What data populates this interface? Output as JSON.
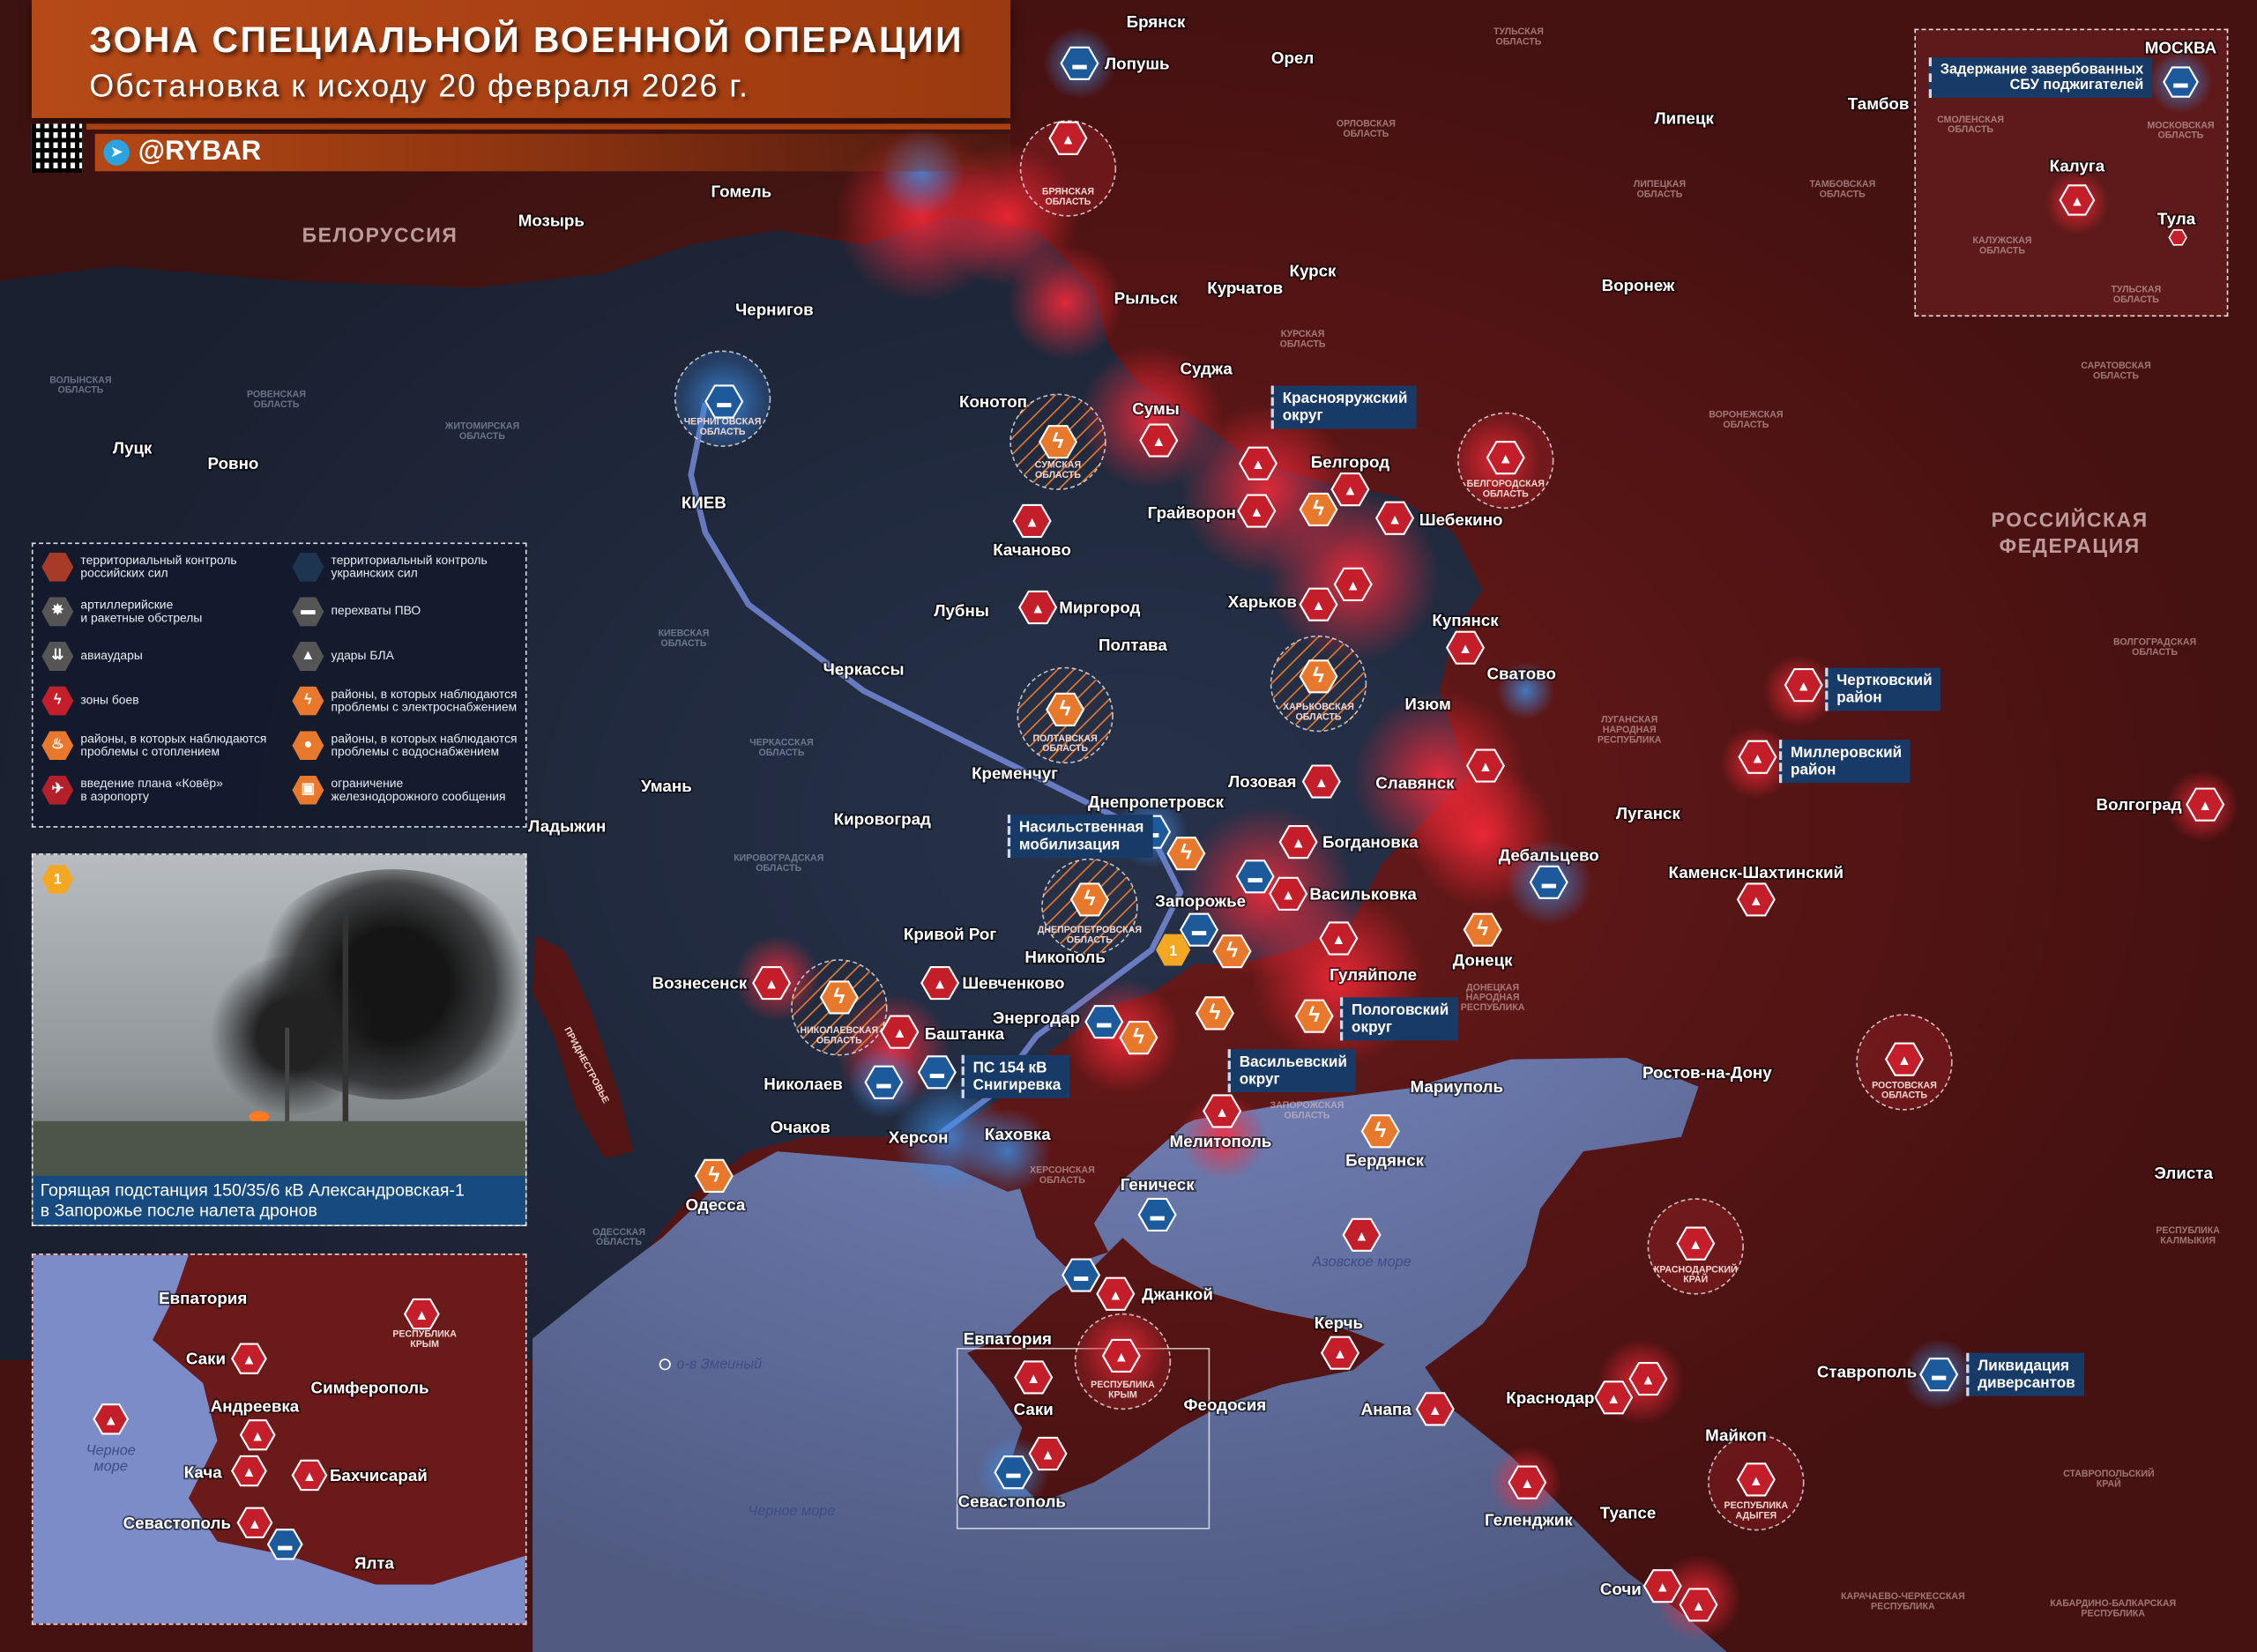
{
  "header": {
    "title": "ЗОНА СПЕЦИАЛЬНОЙ ВОЕННОЙ ОПЕРАЦИИ",
    "subtitle": "Обстановка к исходу 20 февраля 2026 г.",
    "channel": "@RYBAR"
  },
  "colors": {
    "russian_control": "#6b1a1a",
    "ukrainian_control": "#27324a",
    "sea": "#7c8cc8",
    "combat": "#c41e2a",
    "power_problems": "#e8792c",
    "pvo": "#1d5a9c",
    "header": "#b54a18",
    "callout": "#183a66"
  },
  "legend": {
    "items": [
      {
        "label": "территориальный контроль\nроссийских сил",
        "icon": "russian-control-hex"
      },
      {
        "label": "территориальный контроль\nукраинских сил",
        "icon": "ukrainian-control-hex"
      },
      {
        "label": "артиллерийские\nи ракетные обстрелы",
        "icon": "explosion-icon"
      },
      {
        "label": "перехваты ПВО",
        "icon": "air-defense-launcher-icon"
      },
      {
        "label": "авиаудары",
        "icon": "bombs-icon"
      },
      {
        "label": "удары БЛА",
        "icon": "drone-icon"
      },
      {
        "label": "зоны боев",
        "icon": "lightning-red-icon"
      },
      {
        "label": "районы, в которых наблюдаются\nпроблемы с электроснабжением",
        "icon": "lightning-orange-icon"
      },
      {
        "label": "районы, в которых наблюдаются\nпроблемы с отоплением",
        "icon": "flame-icon"
      },
      {
        "label": "районы, в которых наблюдаются\nпроблемы с водоснабжением",
        "icon": "water-drop-icon"
      },
      {
        "label": "введение плана «Ковёр»\nв аэропорту",
        "icon": "airplane-closed-icon"
      },
      {
        "label": "ограничение\nжелезнодорожного сообщения",
        "icon": "train-closed-icon"
      }
    ]
  },
  "photo": {
    "badge": "1",
    "caption": "Горящая подстанция 150/35/6 кВ Александровская-1\nв Запорожье после налета дронов"
  },
  "map": {
    "countries": [
      "БЕЛОРУССИЯ",
      "РОССИЙСКАЯ",
      "ФЕДЕРАЦИЯ"
    ],
    "cities": [
      "Брянск",
      "Лопушь",
      "Орел",
      "Гомель",
      "Мозырь",
      "Чернигов",
      "Рыльск",
      "Курчатов",
      "Курск",
      "Воронеж",
      "Липецк",
      "Тамбов",
      "Суджа",
      "Конотоп",
      "Сумы",
      "Белгород",
      "Грайворон",
      "Шебекино",
      "Луцк",
      "Ровно",
      "КИЕВ",
      "Качановo",
      "Лубны",
      "Миргород",
      "Харьков",
      "Купянск",
      "Полтава",
      "Сватово",
      "Черкассы",
      "Изюм",
      "Кременчуг",
      "Лозовая",
      "Славянск",
      "Днепропетровск",
      "Умань",
      "Ладыжин",
      "Кировоград",
      "Богдановка",
      "Дебальцево",
      "Васильковка",
      "Запорожье",
      "Кривой Рог",
      "Никополь",
      "Гуляйполе",
      "Донецк",
      "Шевченково",
      "Вознесенск",
      "Энергодар",
      "Баштанка",
      "Николаев",
      "Мариуполь",
      "Очаков",
      "Херсон",
      "Каховка",
      "Мелитополь",
      "Бердянск",
      "Одесса",
      "Геническ",
      "Джанкой",
      "Евпатория",
      "Керчь",
      "Саки",
      "Феодосия",
      "Анапа",
      "Краснодар",
      "Севастополь",
      "Геленджик",
      "Туапсе",
      "Сочи",
      "Ставрополь",
      "Майкоп",
      "Ростов-на-Дону",
      "Каменск-Шахтинский",
      "Луганск",
      "Волгоград",
      "Элиста"
    ],
    "regions": [
      "ТУЛЬСКАЯ\nОБЛАСТЬ",
      "ОРЛОВСКАЯ\nОБЛАСТЬ",
      "ЛИПЕЦКАЯ\nОБЛАСТЬ",
      "ТАМБОВСКАЯ\nОБЛАСТЬ",
      "КУРСКАЯ\nОБЛАСТЬ",
      "ВОРОНЕЖСКАЯ\nОБЛАСТЬ",
      "САРАТОВСКАЯ\nОБЛАСТЬ",
      "ВОЛГОГРАДСКАЯ\nОБЛАСТЬ",
      "ЛУГАНСКАЯ\nНАРОДНАЯ\nРЕСПУБЛИКА",
      "ДОНЕЦКАЯ\nНАРОДНАЯ\nРЕСПУБЛИКА",
      "ЗАПОРОЖСКАЯ\nОБЛАСТЬ",
      "ХЕРСОНСКАЯ\nОБЛАСТЬ",
      "РЕСПУБЛИКА\nКАЛМЫКИЯ",
      "СТАВРОПОЛЬСКИЙ\nКРАЙ",
      "КАРАЧАЕВО-ЧЕРКЕССКАЯ\nРЕСПУБЛИКА",
      "КАБАРДИНО-БАЛКАРСКАЯ\nРЕСПУБЛИКА",
      "ВОЛЫНСКАЯ\nОБЛАСТЬ",
      "РОВЕНСКАЯ\nОБЛАСТЬ",
      "ЖИТОМИРСКАЯ\nОБЛАСТЬ",
      "КИЕВСКАЯ\nОБЛАСТЬ",
      "ЧЕРКАССКАЯ\nОБЛАСТЬ",
      "КИРОВОГРАДСКАЯ\nОБЛАСТЬ",
      "ОДЕССКАЯ\nОБЛАСТЬ",
      "ПРИДНЕСТРОВЬЕ"
    ],
    "highlighted_regions": [
      "БРЯНСКАЯ\nОБЛАСТЬ",
      "ЧЕРНИГОВСКАЯ\nОБЛАСТЬ",
      "СУМСКАЯ\nОБЛАСТЬ",
      "БЕЛГОРОДСКАЯ\nОБЛАСТЬ",
      "ХАРЬКОВСКАЯ\nОБЛАСТЬ",
      "ПОЛТАВСКАЯ\nОБЛАСТЬ",
      "ДНЕПРОПЕТРОВСКАЯ\nОБЛАСТЬ",
      "НИКОЛАЕВСКАЯ\nОБЛАСТЬ",
      "РОСТОВСКАЯ\nОБЛАСТЬ",
      "КРАСНОДАРСКИЙ\nКРАЙ",
      "РЕСПУБЛИКА\nКРЫМ",
      "РЕСПУБЛИКА\nАДЫГЕЯ"
    ],
    "callouts": [
      "Краснояружский\nокруг",
      "Чертковский\nрайон",
      "Миллеровский\nрайон",
      "Насильственная\nмобилизация",
      "ПС 154 кВ\nСнигиревка",
      "Пологовский\nокруг",
      "Васильевский\nокруг",
      "Ликвидация\nдиверсантов"
    ],
    "seas": [
      "Черное море",
      "Азовское\nморе"
    ],
    "island": "о-в Змеиный",
    "incident_badge": "1"
  },
  "inset_crimea": {
    "labels": [
      "Евпатория",
      "Саки",
      "Симферополь",
      "Андреевка",
      "Кача",
      "Бахчисарай",
      "Севастополь",
      "Ялта"
    ],
    "region": "РЕСПУБЛИКА\nКРЫМ",
    "sea": "Черное\nморе"
  },
  "inset_moscow": {
    "cities": [
      "МОСКВА",
      "Калуга",
      "Тула"
    ],
    "regions": [
      "СМОЛЕНСКАЯ\nОБЛАСТЬ",
      "МОСКОВСКАЯ\nОБЛАСТЬ",
      "КАЛУЖСКАЯ\nОБЛАСТЬ",
      "ТУЛЬСКАЯ\nОБЛАСТЬ"
    ],
    "callout": "Задержание завербованных\nСБУ поджигателей"
  }
}
